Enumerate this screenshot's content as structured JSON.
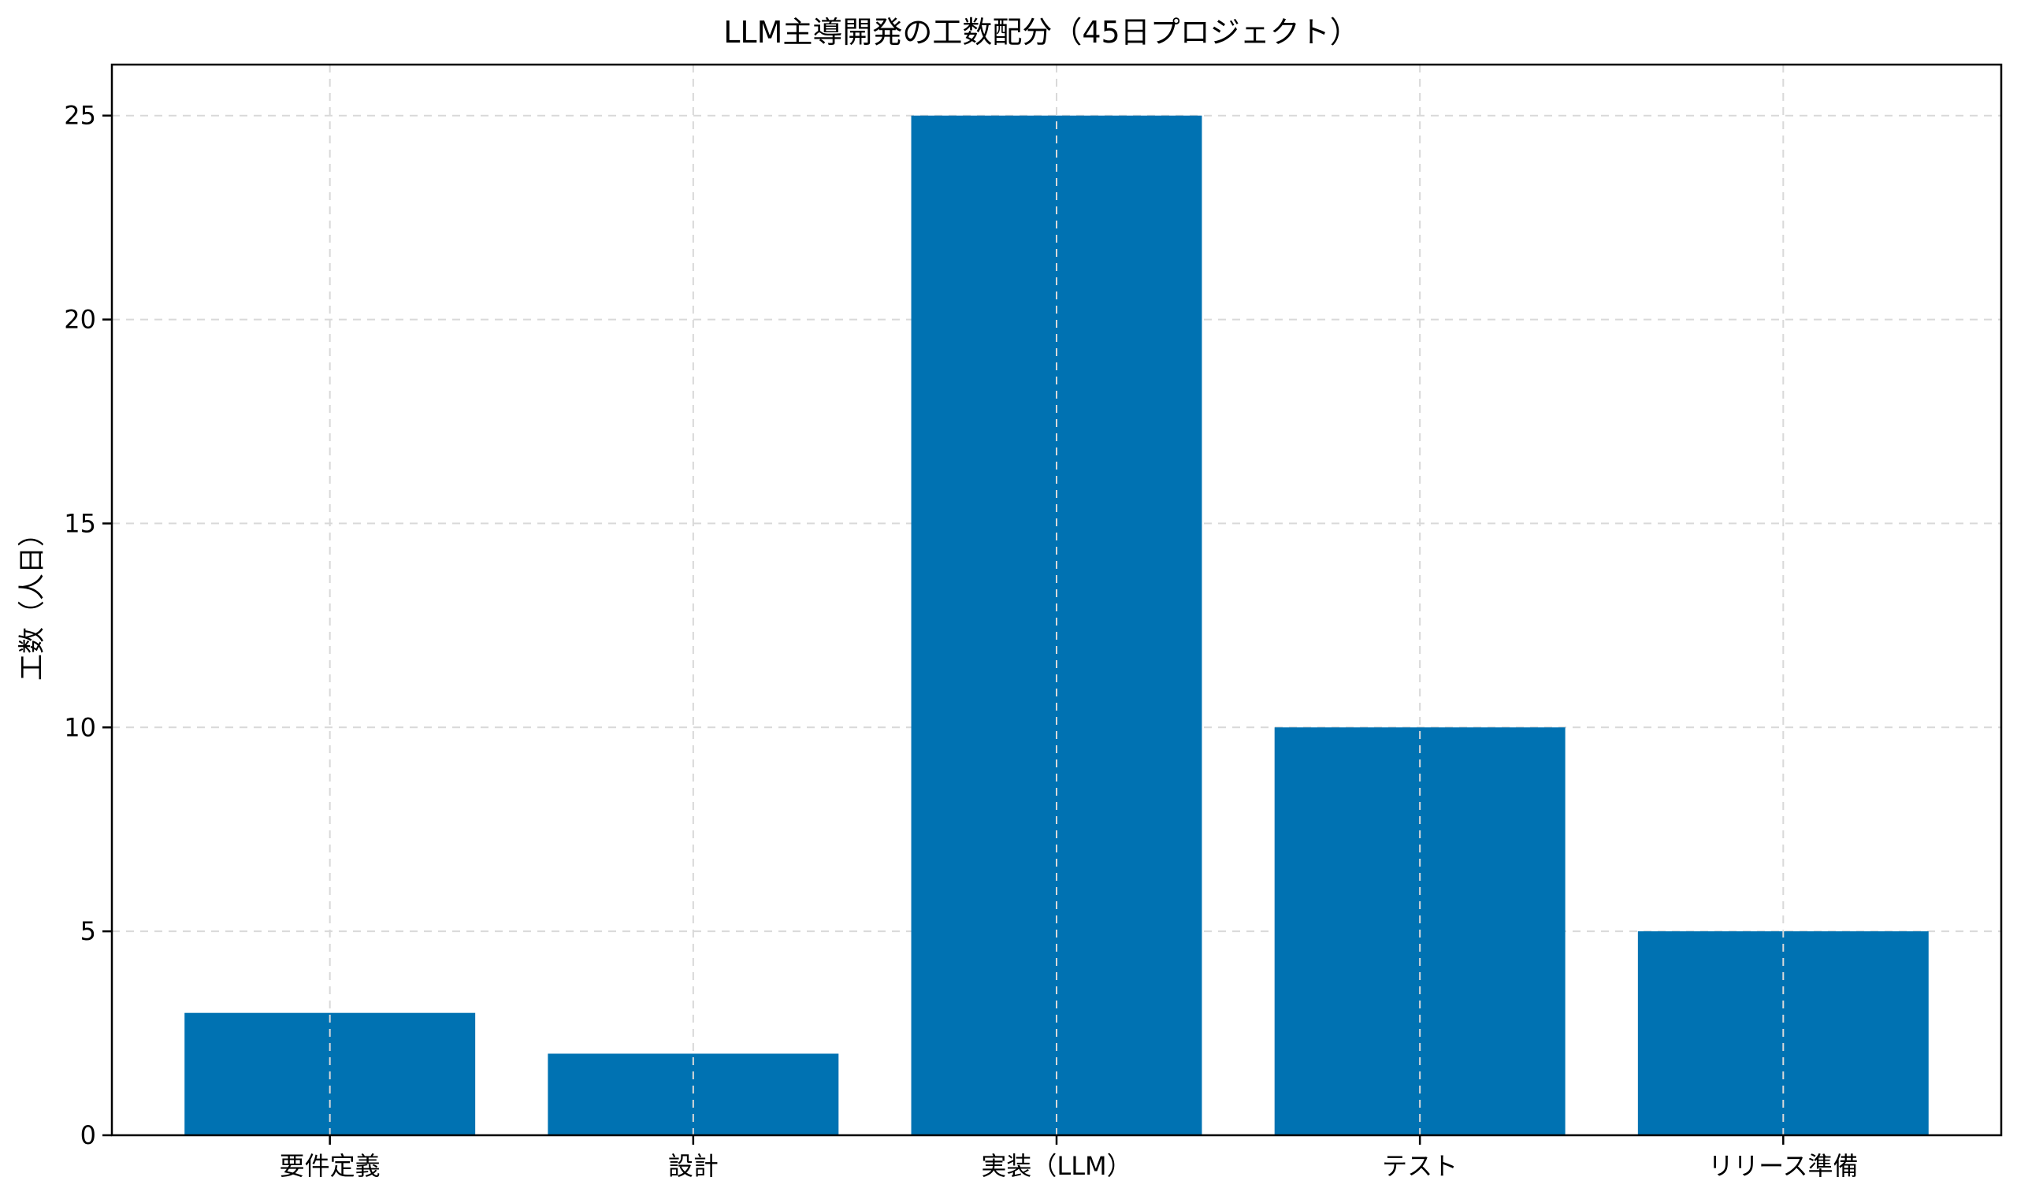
{
  "chart_data": {
    "type": "bar",
    "title": "LLM主導開発の工数配分（45日プロジェクト）",
    "xlabel": "",
    "ylabel": "工数（人日）",
    "categories": [
      "要件定義",
      "設計",
      "実装（LLM）",
      "テスト",
      "リリース準備"
    ],
    "values": [
      3,
      2,
      25,
      10,
      5
    ],
    "ylim": [
      0,
      26.25
    ],
    "yticks": [
      0,
      5,
      10,
      15,
      20,
      25
    ],
    "grid": true,
    "bar_color": "#0072B2"
  }
}
